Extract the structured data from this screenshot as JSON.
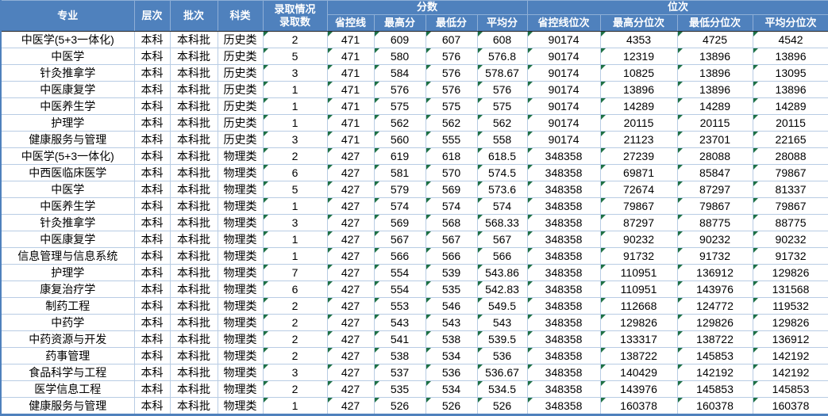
{
  "table": {
    "header": {
      "major": "专业",
      "level": "层次",
      "batch": "批次",
      "category": "科类",
      "admission_line1": "录取情况",
      "admission_line2": "录取数",
      "scores_group": "分数",
      "ranks_group": "位次",
      "subs": [
        "省控线",
        "最高分",
        "最低分",
        "平均分",
        "省控线位次",
        "最高分位次",
        "最低分位次",
        "平均分位次"
      ]
    },
    "rows": [
      [
        "中医学(5+3一体化)",
        "本科",
        "本科批",
        "历史类",
        "2",
        "471",
        "609",
        "607",
        "608",
        "90174",
        "4353",
        "4725",
        "4542"
      ],
      [
        "中医学",
        "本科",
        "本科批",
        "历史类",
        "5",
        "471",
        "580",
        "576",
        "576.8",
        "90174",
        "12319",
        "13896",
        "13896"
      ],
      [
        "针灸推拿学",
        "本科",
        "本科批",
        "历史类",
        "3",
        "471",
        "584",
        "576",
        "578.67",
        "90174",
        "10825",
        "13896",
        "13095"
      ],
      [
        "中医康复学",
        "本科",
        "本科批",
        "历史类",
        "1",
        "471",
        "576",
        "576",
        "576",
        "90174",
        "13896",
        "13896",
        "13896"
      ],
      [
        "中医养生学",
        "本科",
        "本科批",
        "历史类",
        "1",
        "471",
        "575",
        "575",
        "575",
        "90174",
        "14289",
        "14289",
        "14289"
      ],
      [
        "护理学",
        "本科",
        "本科批",
        "历史类",
        "1",
        "471",
        "562",
        "562",
        "562",
        "90174",
        "20115",
        "20115",
        "20115"
      ],
      [
        "健康服务与管理",
        "本科",
        "本科批",
        "历史类",
        "3",
        "471",
        "560",
        "555",
        "558",
        "90174",
        "21123",
        "23701",
        "22165"
      ],
      [
        "中医学(5+3一体化)",
        "本科",
        "本科批",
        "物理类",
        "2",
        "427",
        "619",
        "618",
        "618.5",
        "348358",
        "27239",
        "28088",
        "28088"
      ],
      [
        "中西医临床医学",
        "本科",
        "本科批",
        "物理类",
        "6",
        "427",
        "581",
        "570",
        "574.5",
        "348358",
        "69871",
        "85847",
        "79867"
      ],
      [
        "中医学",
        "本科",
        "本科批",
        "物理类",
        "5",
        "427",
        "579",
        "569",
        "573.6",
        "348358",
        "72674",
        "87297",
        "81337"
      ],
      [
        "中医养生学",
        "本科",
        "本科批",
        "物理类",
        "1",
        "427",
        "574",
        "574",
        "574",
        "348358",
        "79867",
        "79867",
        "79867"
      ],
      [
        "针灸推拿学",
        "本科",
        "本科批",
        "物理类",
        "3",
        "427",
        "569",
        "568",
        "568.33",
        "348358",
        "87297",
        "88775",
        "88775"
      ],
      [
        "中医康复学",
        "本科",
        "本科批",
        "物理类",
        "1",
        "427",
        "567",
        "567",
        "567",
        "348358",
        "90232",
        "90232",
        "90232"
      ],
      [
        "信息管理与信息系统",
        "本科",
        "本科批",
        "物理类",
        "1",
        "427",
        "566",
        "566",
        "566",
        "348358",
        "91732",
        "91732",
        "91732"
      ],
      [
        "护理学",
        "本科",
        "本科批",
        "物理类",
        "7",
        "427",
        "554",
        "539",
        "543.86",
        "348358",
        "110951",
        "136912",
        "129826"
      ],
      [
        "康复治疗学",
        "本科",
        "本科批",
        "物理类",
        "6",
        "427",
        "554",
        "535",
        "542.83",
        "348358",
        "110951",
        "143976",
        "131568"
      ],
      [
        "制药工程",
        "本科",
        "本科批",
        "物理类",
        "2",
        "427",
        "553",
        "546",
        "549.5",
        "348358",
        "112668",
        "124772",
        "119532"
      ],
      [
        "中药学",
        "本科",
        "本科批",
        "物理类",
        "2",
        "427",
        "543",
        "543",
        "543",
        "348358",
        "129826",
        "129826",
        "129826"
      ],
      [
        "中药资源与开发",
        "本科",
        "本科批",
        "物理类",
        "2",
        "427",
        "541",
        "538",
        "539.5",
        "348358",
        "133317",
        "138722",
        "136912"
      ],
      [
        "药事管理",
        "本科",
        "本科批",
        "物理类",
        "2",
        "427",
        "538",
        "534",
        "536",
        "348358",
        "138722",
        "145853",
        "142192"
      ],
      [
        "食品科学与工程",
        "本科",
        "本科批",
        "物理类",
        "3",
        "427",
        "537",
        "536",
        "536.67",
        "348358",
        "140429",
        "142192",
        "142192"
      ],
      [
        "医学信息工程",
        "本科",
        "本科批",
        "物理类",
        "2",
        "427",
        "535",
        "534",
        "534.5",
        "348358",
        "143976",
        "145853",
        "145853"
      ],
      [
        "健康服务与管理",
        "本科",
        "本科批",
        "物理类",
        "1",
        "427",
        "526",
        "526",
        "526",
        "348358",
        "160378",
        "160378",
        "160378"
      ]
    ]
  },
  "colors": {
    "header_bg": "#4f81bd",
    "header_text": "#ffffff",
    "grid_line": "#b8cce4",
    "flag_green": "#1e7145",
    "outer_border": "#4f81bd"
  }
}
